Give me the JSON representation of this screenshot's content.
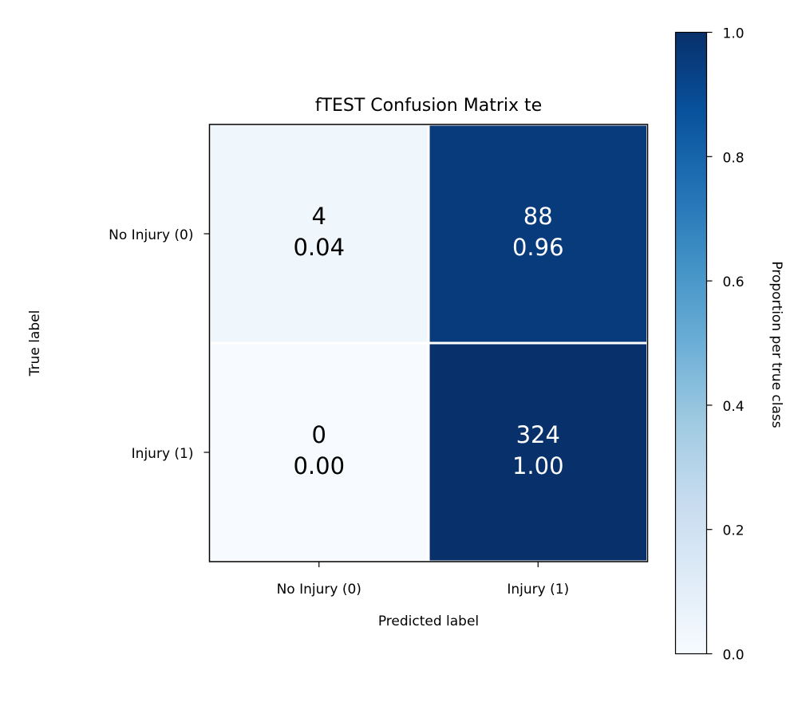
{
  "chart_data": {
    "type": "heatmap",
    "title": "fTEST Confusion Matrix te",
    "xlabel": "Predicted label",
    "ylabel": "True label",
    "x_categories": [
      "No Injury (0)",
      "Injury (1)"
    ],
    "y_categories": [
      "No Injury (0)",
      "Injury (1)"
    ],
    "counts": [
      [
        4,
        88
      ],
      [
        0,
        324
      ]
    ],
    "proportions": [
      [
        0.04,
        0.96
      ],
      [
        0.0,
        1.0
      ]
    ],
    "proportion_labels": [
      [
        "0.04",
        "0.96"
      ],
      [
        "0.00",
        "1.00"
      ]
    ],
    "colorbar": {
      "label": "Proportion per true class",
      "range": [
        0,
        1
      ],
      "ticks": [
        "0.0",
        "0.2",
        "0.4",
        "0.6",
        "0.8",
        "1.0"
      ],
      "colormap": "Blues"
    },
    "colors": {
      "cell_text_dark": "#000000",
      "cell_text_light": "#ffffff",
      "frame": "#000000"
    }
  }
}
